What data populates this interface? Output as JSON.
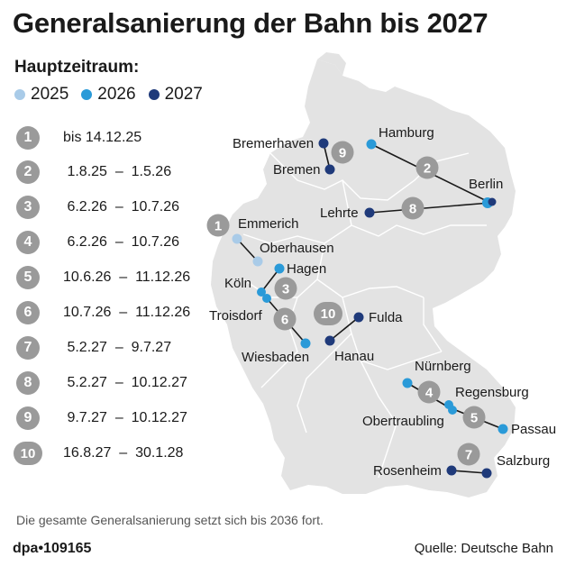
{
  "title": "Generalsanierung der Bahn bis 2027",
  "legend": {
    "heading": "Hauptzeitraum:",
    "items": [
      {
        "label": "2025",
        "color": "#a9cbe8"
      },
      {
        "label": "2026",
        "color": "#2a9ad8"
      },
      {
        "label": "2027",
        "color": "#1f3a7a"
      }
    ]
  },
  "periods": [
    {
      "num": "1",
      "text": "bis 14.12.25"
    },
    {
      "num": "2",
      "text": " 1.8.25  –  1.5.26"
    },
    {
      "num": "3",
      "text": " 6.2.26  –  10.7.26"
    },
    {
      "num": "4",
      "text": " 6.2.26  –  10.7.26"
    },
    {
      "num": "5",
      "text": "10.6.26  –  11.12.26"
    },
    {
      "num": "6",
      "text": "10.7.26  –  11.12.26"
    },
    {
      "num": "7",
      "text": " 5.2.27  –  9.7.27"
    },
    {
      "num": "8",
      "text": " 5.2.27  –  10.12.27"
    },
    {
      "num": "9",
      "text": " 9.7.27  –  10.12.27"
    },
    {
      "num": "10",
      "text": "16.8.27  –  30.1.28"
    }
  ],
  "cities": {
    "bremerhaven": "Bremerhaven",
    "bremen": "Bremen",
    "hamburg": "Hamburg",
    "berlin": "Berlin",
    "lehrte": "Lehrte",
    "emmerich": "Emmerich",
    "oberhausen": "Oberhausen",
    "koeln": "Köln",
    "hagen": "Hagen",
    "troisdorf": "Troisdorf",
    "wiesbaden": "Wiesbaden",
    "fulda": "Fulda",
    "hanau": "Hanau",
    "nuernberg": "Nürnberg",
    "regensburg": "Regensburg",
    "obertraubling": "Obertraubling",
    "passau": "Passau",
    "rosenheim": "Rosenheim",
    "salzburg": "Salzburg"
  },
  "map_badges": [
    "1",
    "2",
    "3",
    "4",
    "5",
    "6",
    "7",
    "8",
    "9",
    "10"
  ],
  "footnote": "Die gesamte Generalsanierung setzt sich bis 2036 fort.",
  "credit": "dpa•109165",
  "source": "Quelle: Deutsche Bahn",
  "colors": {
    "map_fill": "#e4e4e4",
    "badge": "#9a9a9a"
  }
}
